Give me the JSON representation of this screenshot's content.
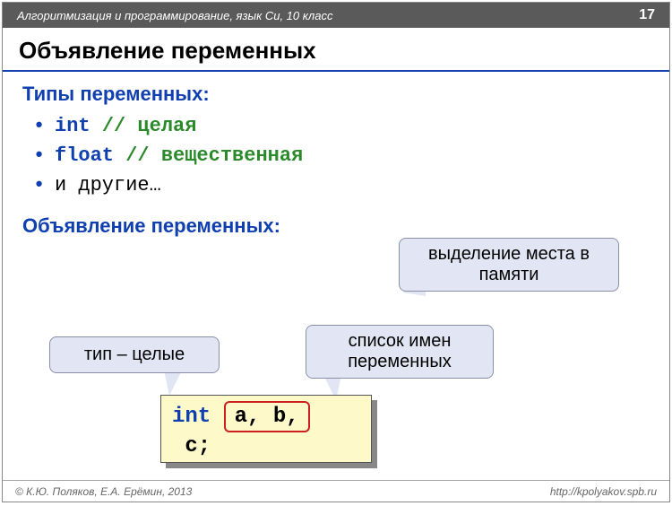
{
  "meta": {
    "course": "Алгоритмизация и программирование, язык Си, 10 класс",
    "page_number": "17",
    "copyright": "© К.Ю. Поляков, Е.А. Ерёмин, 2013",
    "url": "http://kpolyakov.spb.ru"
  },
  "title": "Объявление  переменных",
  "section_types": {
    "heading": "Типы переменных:",
    "items": [
      {
        "keyword": "int",
        "gap": "    ",
        "comment": "// целая"
      },
      {
        "keyword": "float",
        "gap": "  ",
        "comment": "// вещественная"
      }
    ],
    "other": "и другие…"
  },
  "section_decl": {
    "heading": "Объявление переменных:"
  },
  "callouts": {
    "memory": "выделение места в памяти",
    "type": "тип – целые",
    "list_line1": "список имен",
    "list_line2": "переменных"
  },
  "code": {
    "keyword": "int",
    "vars": "a, b,",
    "line2": "c;"
  },
  "colors": {
    "header_bg": "#5a5a5a",
    "accent_blue": "#1040b0",
    "comment_green": "#2a8a2a",
    "callout_bg": "#e2e6f4",
    "callout_border": "#8a8fa8",
    "code_bg": "#fef9c8",
    "var_border": "#cc2020"
  },
  "typography": {
    "title_fontsize_pt": 20,
    "subhead_fontsize_pt": 17,
    "body_fontsize_pt": 17,
    "code_font": "Courier New",
    "body_font": "Arial"
  }
}
